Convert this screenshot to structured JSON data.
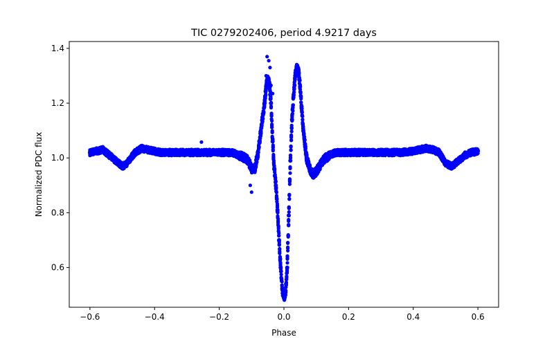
{
  "chart_data": {
    "type": "scatter",
    "title": "TIC 0279202406, period 4.9217 days",
    "xlabel": "Phase",
    "ylabel": "Normalized PDC flux",
    "xlim": [
      -0.664,
      0.664
    ],
    "ylim": [
      0.455,
      1.425
    ],
    "xticks": [
      -0.6,
      -0.4,
      -0.2,
      0.0,
      0.2,
      0.4,
      0.6
    ],
    "xtick_labels": [
      "−0.6",
      "−0.4",
      "−0.2",
      "0.0",
      "0.2",
      "0.4",
      "0.6"
    ],
    "yticks": [
      0.6,
      0.8,
      1.0,
      1.2,
      1.4
    ],
    "ytick_labels": [
      "0.6",
      "0.8",
      "1.0",
      "1.2",
      "1.4"
    ],
    "grid": false,
    "marker_color": "#0000ff",
    "series": [
      {
        "x": [
          -0.6,
          -0.58,
          -0.56,
          -0.54,
          -0.52,
          -0.5,
          -0.49,
          -0.48,
          -0.46,
          -0.44,
          -0.42,
          -0.4,
          -0.38,
          -0.36,
          -0.34,
          -0.32,
          -0.3,
          -0.28,
          -0.26,
          -0.24,
          -0.22,
          -0.2,
          -0.18,
          -0.16,
          -0.14,
          -0.12,
          -0.11,
          -0.1,
          -0.09,
          -0.08,
          -0.07,
          -0.06,
          -0.055,
          -0.05,
          -0.045,
          -0.04,
          -0.035,
          -0.03,
          -0.025,
          -0.02,
          -0.015,
          -0.01,
          -0.005,
          0.0,
          0.005,
          0.01,
          0.015,
          0.02,
          0.025,
          0.03,
          0.035,
          0.04,
          0.045,
          0.05,
          0.055,
          0.06,
          0.065,
          0.07,
          0.08,
          0.09,
          0.1,
          0.11,
          0.12,
          0.14,
          0.16,
          0.2,
          0.24,
          0.28,
          0.32,
          0.36,
          0.4,
          0.42,
          0.44,
          0.46,
          0.48,
          0.49,
          0.5,
          0.52,
          0.54,
          0.56,
          0.58,
          0.6
        ],
        "y": [
          1.02,
          1.025,
          1.03,
          1.01,
          0.99,
          0.97,
          0.975,
          0.99,
          1.02,
          1.035,
          1.03,
          1.025,
          1.02,
          1.02,
          1.02,
          1.02,
          1.02,
          1.02,
          1.02,
          1.02,
          1.02,
          1.02,
          1.02,
          1.02,
          1.01,
          1.0,
          0.99,
          0.96,
          0.96,
          1.02,
          1.11,
          1.2,
          1.26,
          1.29,
          1.27,
          1.2,
          1.06,
          0.96,
          0.9,
          0.81,
          0.7,
          0.6,
          0.52,
          0.49,
          0.51,
          0.6,
          0.79,
          0.99,
          1.14,
          1.23,
          1.3,
          1.33,
          1.32,
          1.26,
          1.18,
          1.1,
          1.05,
          1.0,
          0.96,
          0.94,
          0.95,
          0.97,
          0.99,
          1.01,
          1.02,
          1.02,
          1.02,
          1.02,
          1.02,
          1.02,
          1.025,
          1.03,
          1.035,
          1.03,
          1.02,
          1.0,
          0.98,
          0.97,
          0.99,
          1.01,
          1.02,
          1.025
        ]
      }
    ],
    "outliers": {
      "x": [
        -0.052,
        -0.047,
        -0.043,
        -0.055,
        -0.04,
        -0.035,
        -0.1,
        -0.104,
        -0.255
      ],
      "y": [
        1.37,
        1.355,
        1.33,
        1.3,
        1.265,
        1.235,
        0.875,
        0.9,
        1.058
      ]
    }
  }
}
